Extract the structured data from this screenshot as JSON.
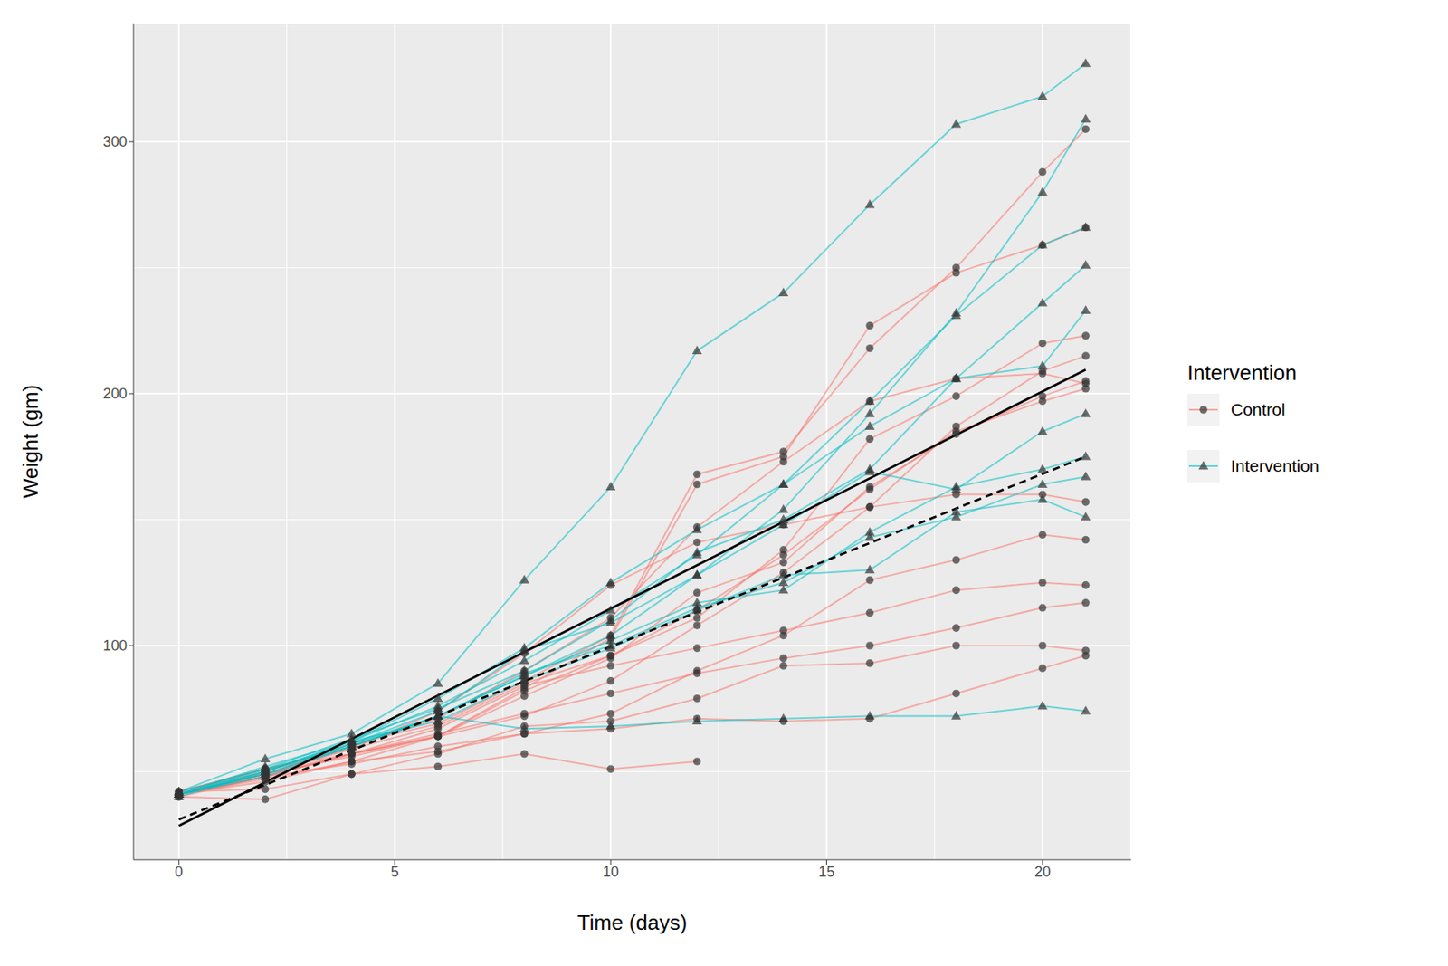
{
  "chart_data": {
    "type": "line",
    "xlabel": "Time (days)",
    "ylabel": "Weight (gm)",
    "legend_title": "Intervention",
    "legend": "right",
    "grid": true,
    "x": [
      0,
      2,
      4,
      6,
      8,
      10,
      12,
      14,
      16,
      18,
      20,
      21
    ],
    "xlim": [
      -1.05,
      22.05
    ],
    "xticks": [
      0,
      5,
      10,
      15,
      20
    ],
    "ylim": [
      15,
      347
    ],
    "yticks": [
      100,
      200,
      300
    ],
    "series": [
      {
        "name": "Control",
        "color": "#F8766D",
        "marker": "circle",
        "values": [
          [
            41,
            49,
            59,
            74,
            97,
            124,
            141,
            148,
            155,
            160,
            160,
            157
          ],
          [
            42,
            50,
            61,
            69,
            86,
            104,
            168,
            177,
            218,
            250,
            288,
            305
          ],
          [
            41,
            48,
            57,
            64,
            83,
            103,
            164,
            175,
            227,
            248,
            259,
            266
          ],
          [
            42,
            51,
            59,
            68,
            85,
            96,
            111,
            138,
            182,
            199,
            220,
            223
          ],
          [
            41,
            49,
            56,
            64,
            72,
            86,
            108,
            129,
            155,
            187,
            209,
            215
          ],
          [
            40,
            48,
            57,
            64,
            80,
            95,
            121,
            133,
            163,
            184,
            199,
            205
          ],
          [
            41,
            46,
            54,
            64,
            82,
            96,
            114,
            136,
            162,
            185,
            197,
            202
          ],
          [
            41,
            47,
            54,
            58,
            65,
            73,
            90,
            104,
            126,
            134,
            144,
            142
          ],
          [
            41,
            49,
            57,
            67,
            84,
            92,
            99,
            106,
            113,
            122,
            125,
            124
          ],
          [
            42,
            51,
            57,
            65,
            73,
            81,
            89,
            95,
            100,
            107,
            115,
            117
          ],
          [
            41,
            48,
            53,
            60,
            65,
            67,
            71,
            70,
            71,
            81,
            91,
            96
          ],
          [
            40,
            39,
            49,
            57,
            68,
            70,
            79,
            92,
            93,
            100,
            100,
            98
          ],
          [
            42,
            43,
            49,
            52,
            57,
            51,
            54,
            null,
            null,
            null,
            null,
            null
          ],
          [
            41,
            49,
            60,
            71,
            90,
            111,
            147,
            173,
            197,
            206,
            208,
            204
          ]
        ]
      },
      {
        "name": "Intervention",
        "color": "#00BFC4",
        "marker": "triangle",
        "values": [
          [
            42,
            55,
            65,
            85,
            126,
            163,
            217,
            240,
            275,
            307,
            318,
            331
          ],
          [
            41,
            49,
            61,
            74,
            98,
            109,
            128,
            154,
            192,
            232,
            280,
            309
          ],
          [
            41,
            52,
            62,
            79,
            99,
            125,
            146,
            164,
            197,
            231,
            259,
            266
          ],
          [
            41,
            50,
            62,
            76,
            94,
            114,
            136,
            164,
            187,
            206,
            236,
            251
          ],
          [
            41,
            51,
            63,
            75,
            90,
            110,
            137,
            150,
            170,
            206,
            211,
            233
          ],
          [
            41,
            48,
            60,
            72,
            88,
            104,
            128,
            148,
            169,
            162,
            185,
            192
          ],
          [
            41,
            49,
            60,
            72,
            88,
            102,
            117,
            122,
            145,
            163,
            170,
            175
          ],
          [
            42,
            51,
            60,
            72,
            89,
            100,
            115,
            125,
            143,
            151,
            164,
            167
          ],
          [
            40,
            50,
            62,
            70,
            86,
            99,
            114,
            128,
            130,
            153,
            158,
            151
          ],
          [
            41,
            50,
            61,
            72,
            67,
            68,
            70,
            71,
            72,
            72,
            76,
            74
          ]
        ]
      }
    ],
    "fits": [
      {
        "color": "#000000",
        "line_style": "solid",
        "x": [
          0,
          21
        ],
        "values": [
          28.5,
          209.5
        ]
      },
      {
        "color": "#000000",
        "line_style": "dashed",
        "x": [
          0,
          21
        ],
        "values": [
          31,
          175
        ]
      }
    ]
  }
}
